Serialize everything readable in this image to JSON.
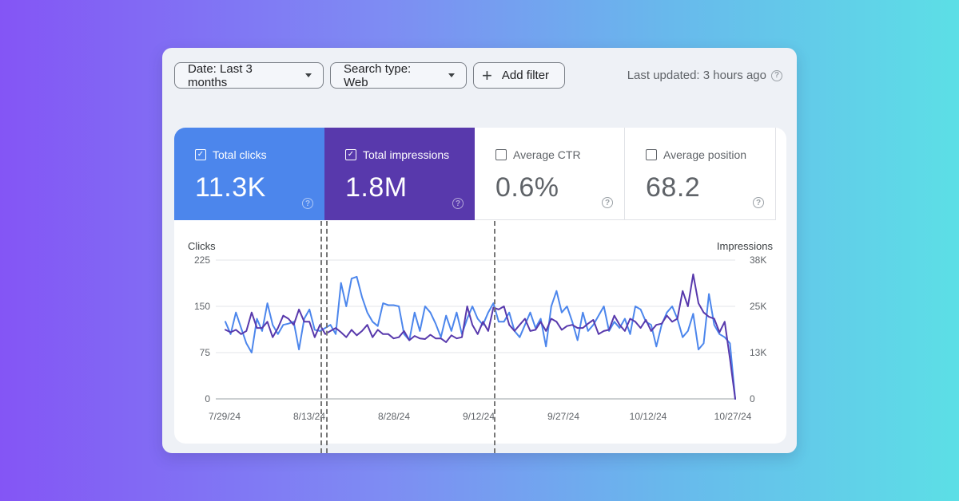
{
  "toolbar": {
    "date_filter": "Date: Last 3 months",
    "search_type_filter": "Search type: Web",
    "add_filter": "Add filter",
    "last_updated": "Last updated: 3 hours ago"
  },
  "metrics": [
    {
      "label": "Total clicks",
      "value": "11.3K",
      "checked": true,
      "color": "#4c86ec"
    },
    {
      "label": "Total impressions",
      "value": "1.8M",
      "checked": true,
      "color": "#5839ac"
    },
    {
      "label": "Average CTR",
      "value": "0.6%",
      "checked": false
    },
    {
      "label": "Average position",
      "value": "68.2",
      "checked": false
    }
  ],
  "chart_data": {
    "type": "line",
    "left_axis_title": "Clicks",
    "right_axis_title": "Impressions",
    "left_ticks": [
      "225",
      "150",
      "75",
      "0"
    ],
    "right_ticks": [
      "38K",
      "25K",
      "13K",
      "0"
    ],
    "left_ylim": [
      0,
      225
    ],
    "right_ylim": [
      0,
      38000
    ],
    "x_ticks": [
      "7/29/24",
      "8/13/24",
      "8/28/24",
      "9/12/24",
      "9/27/24",
      "10/12/24",
      "10/27/24"
    ],
    "x_range": [
      "7/29/24",
      "10/28/24"
    ],
    "grid": true,
    "annotation_dates": [
      "8/16/24",
      "8/17/24",
      "9/15/24"
    ],
    "series": [
      {
        "name": "Clicks",
        "axis": "left",
        "color": "#4c86ec",
        "values": [
          125,
          105,
          140,
          115,
          90,
          75,
          130,
          110,
          155,
          120,
          105,
          120,
          122,
          125,
          80,
          130,
          145,
          112,
          110,
          115,
          120,
          105,
          188,
          150,
          195,
          198,
          165,
          140,
          125,
          118,
          155,
          152,
          152,
          150,
          105,
          95,
          140,
          110,
          150,
          140,
          122,
          100,
          135,
          110,
          140,
          105,
          130,
          150,
          130,
          120,
          140,
          155,
          125,
          125,
          140,
          110,
          100,
          120,
          140,
          115,
          130,
          85,
          150,
          175,
          140,
          150,
          125,
          95,
          140,
          110,
          120,
          135,
          150,
          110,
          125,
          115,
          130,
          105,
          150,
          145,
          125,
          120,
          85,
          120,
          140,
          150,
          130,
          100,
          110,
          138,
          80,
          90,
          170,
          120,
          105,
          100,
          90,
          0
        ]
      },
      {
        "name": "Impressions",
        "axis": "left",
        "color": "#5839ac",
        "values": [
          112,
          108,
          112,
          105,
          110,
          140,
          115,
          115,
          125,
          100,
          115,
          135,
          130,
          120,
          145,
          125,
          125,
          100,
          120,
          105,
          110,
          115,
          108,
          100,
          112,
          103,
          110,
          120,
          100,
          112,
          105,
          105,
          98,
          100,
          110,
          95,
          102,
          98,
          97,
          104,
          98,
          98,
          92,
          103,
          98,
          100,
          150,
          120,
          105,
          125,
          110,
          148,
          145,
          150,
          120,
          110,
          120,
          130,
          110,
          112,
          125,
          110,
          130,
          125,
          112,
          118,
          120,
          115,
          115,
          122,
          128,
          105,
          110,
          112,
          135,
          120,
          110,
          130,
          125,
          115,
          128,
          110,
          120,
          122,
          135,
          125,
          130,
          175,
          150,
          202,
          155,
          140,
          133,
          130,
          108,
          125,
          65,
          0
        ]
      }
    ]
  }
}
